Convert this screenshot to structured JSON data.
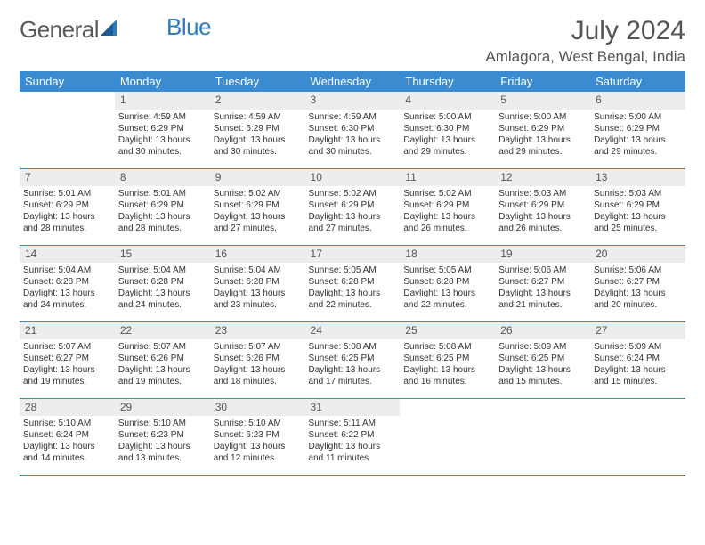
{
  "logo": {
    "text1": "General",
    "text2": "Blue"
  },
  "title": {
    "month": "July 2024",
    "location": "Amlagora, West Bengal, India"
  },
  "colors": {
    "header_bg": "#3b8bd0",
    "header_text": "#ffffff",
    "daynum_bg": "#ededed",
    "text": "#333333",
    "border": "#3b8bd0",
    "logo_gray": "#5a5a5a",
    "logo_blue": "#2e7cc0"
  },
  "daynames": [
    "Sunday",
    "Monday",
    "Tuesday",
    "Wednesday",
    "Thursday",
    "Friday",
    "Saturday"
  ],
  "weeks": [
    [
      {
        "num": "",
        "lines": []
      },
      {
        "num": "1",
        "lines": [
          "Sunrise: 4:59 AM",
          "Sunset: 6:29 PM",
          "Daylight: 13 hours and 30 minutes."
        ]
      },
      {
        "num": "2",
        "lines": [
          "Sunrise: 4:59 AM",
          "Sunset: 6:29 PM",
          "Daylight: 13 hours and 30 minutes."
        ]
      },
      {
        "num": "3",
        "lines": [
          "Sunrise: 4:59 AM",
          "Sunset: 6:30 PM",
          "Daylight: 13 hours and 30 minutes."
        ]
      },
      {
        "num": "4",
        "lines": [
          "Sunrise: 5:00 AM",
          "Sunset: 6:30 PM",
          "Daylight: 13 hours and 29 minutes."
        ]
      },
      {
        "num": "5",
        "lines": [
          "Sunrise: 5:00 AM",
          "Sunset: 6:29 PM",
          "Daylight: 13 hours and 29 minutes."
        ]
      },
      {
        "num": "6",
        "lines": [
          "Sunrise: 5:00 AM",
          "Sunset: 6:29 PM",
          "Daylight: 13 hours and 29 minutes."
        ]
      }
    ],
    [
      {
        "num": "7",
        "lines": [
          "Sunrise: 5:01 AM",
          "Sunset: 6:29 PM",
          "Daylight: 13 hours and 28 minutes."
        ]
      },
      {
        "num": "8",
        "lines": [
          "Sunrise: 5:01 AM",
          "Sunset: 6:29 PM",
          "Daylight: 13 hours and 28 minutes."
        ]
      },
      {
        "num": "9",
        "lines": [
          "Sunrise: 5:02 AM",
          "Sunset: 6:29 PM",
          "Daylight: 13 hours and 27 minutes."
        ]
      },
      {
        "num": "10",
        "lines": [
          "Sunrise: 5:02 AM",
          "Sunset: 6:29 PM",
          "Daylight: 13 hours and 27 minutes."
        ]
      },
      {
        "num": "11",
        "lines": [
          "Sunrise: 5:02 AM",
          "Sunset: 6:29 PM",
          "Daylight: 13 hours and 26 minutes."
        ]
      },
      {
        "num": "12",
        "lines": [
          "Sunrise: 5:03 AM",
          "Sunset: 6:29 PM",
          "Daylight: 13 hours and 26 minutes."
        ]
      },
      {
        "num": "13",
        "lines": [
          "Sunrise: 5:03 AM",
          "Sunset: 6:29 PM",
          "Daylight: 13 hours and 25 minutes."
        ]
      }
    ],
    [
      {
        "num": "14",
        "lines": [
          "Sunrise: 5:04 AM",
          "Sunset: 6:28 PM",
          "Daylight: 13 hours and 24 minutes."
        ]
      },
      {
        "num": "15",
        "lines": [
          "Sunrise: 5:04 AM",
          "Sunset: 6:28 PM",
          "Daylight: 13 hours and 24 minutes."
        ]
      },
      {
        "num": "16",
        "lines": [
          "Sunrise: 5:04 AM",
          "Sunset: 6:28 PM",
          "Daylight: 13 hours and 23 minutes."
        ]
      },
      {
        "num": "17",
        "lines": [
          "Sunrise: 5:05 AM",
          "Sunset: 6:28 PM",
          "Daylight: 13 hours and 22 minutes."
        ]
      },
      {
        "num": "18",
        "lines": [
          "Sunrise: 5:05 AM",
          "Sunset: 6:28 PM",
          "Daylight: 13 hours and 22 minutes."
        ]
      },
      {
        "num": "19",
        "lines": [
          "Sunrise: 5:06 AM",
          "Sunset: 6:27 PM",
          "Daylight: 13 hours and 21 minutes."
        ]
      },
      {
        "num": "20",
        "lines": [
          "Sunrise: 5:06 AM",
          "Sunset: 6:27 PM",
          "Daylight: 13 hours and 20 minutes."
        ]
      }
    ],
    [
      {
        "num": "21",
        "lines": [
          "Sunrise: 5:07 AM",
          "Sunset: 6:27 PM",
          "Daylight: 13 hours and 19 minutes."
        ]
      },
      {
        "num": "22",
        "lines": [
          "Sunrise: 5:07 AM",
          "Sunset: 6:26 PM",
          "Daylight: 13 hours and 19 minutes."
        ]
      },
      {
        "num": "23",
        "lines": [
          "Sunrise: 5:07 AM",
          "Sunset: 6:26 PM",
          "Daylight: 13 hours and 18 minutes."
        ]
      },
      {
        "num": "24",
        "lines": [
          "Sunrise: 5:08 AM",
          "Sunset: 6:25 PM",
          "Daylight: 13 hours and 17 minutes."
        ]
      },
      {
        "num": "25",
        "lines": [
          "Sunrise: 5:08 AM",
          "Sunset: 6:25 PM",
          "Daylight: 13 hours and 16 minutes."
        ]
      },
      {
        "num": "26",
        "lines": [
          "Sunrise: 5:09 AM",
          "Sunset: 6:25 PM",
          "Daylight: 13 hours and 15 minutes."
        ]
      },
      {
        "num": "27",
        "lines": [
          "Sunrise: 5:09 AM",
          "Sunset: 6:24 PM",
          "Daylight: 13 hours and 15 minutes."
        ]
      }
    ],
    [
      {
        "num": "28",
        "lines": [
          "Sunrise: 5:10 AM",
          "Sunset: 6:24 PM",
          "Daylight: 13 hours and 14 minutes."
        ]
      },
      {
        "num": "29",
        "lines": [
          "Sunrise: 5:10 AM",
          "Sunset: 6:23 PM",
          "Daylight: 13 hours and 13 minutes."
        ]
      },
      {
        "num": "30",
        "lines": [
          "Sunrise: 5:10 AM",
          "Sunset: 6:23 PM",
          "Daylight: 13 hours and 12 minutes."
        ]
      },
      {
        "num": "31",
        "lines": [
          "Sunrise: 5:11 AM",
          "Sunset: 6:22 PM",
          "Daylight: 13 hours and 11 minutes."
        ]
      },
      {
        "num": "",
        "lines": []
      },
      {
        "num": "",
        "lines": []
      },
      {
        "num": "",
        "lines": []
      }
    ]
  ]
}
